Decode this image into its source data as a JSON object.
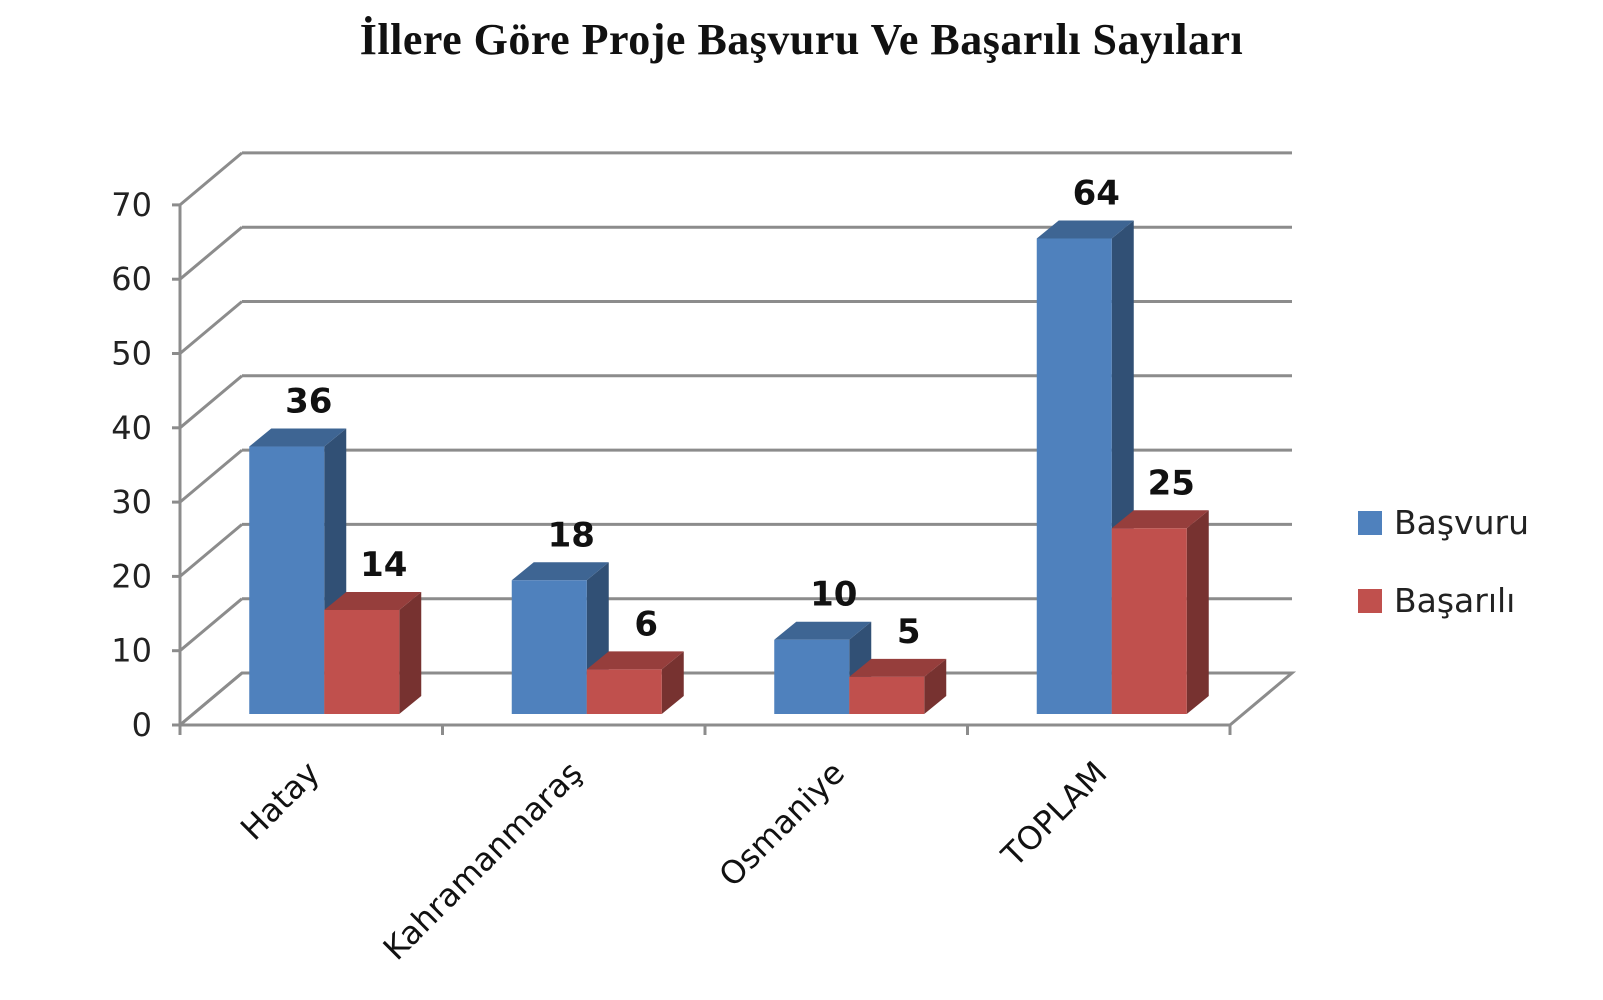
{
  "chart_data": {
    "type": "bar",
    "title": "İllere Göre Proje Başvuru Ve Başarılı Sayıları",
    "categories": [
      "Hatay",
      "Kahramanmaraş",
      "Osmaniye",
      "TOPLAM"
    ],
    "series": [
      {
        "name": "Başvuru",
        "values": [
          36,
          18,
          10,
          64
        ],
        "color": "#4F81BD"
      },
      {
        "name": "Başarılı",
        "values": [
          14,
          6,
          5,
          25
        ],
        "color": "#C0504D"
      }
    ],
    "ylim": [
      0,
      70
    ],
    "yticks": [
      0,
      10,
      20,
      30,
      40,
      50,
      60,
      70
    ],
    "grid": true,
    "legend_position": "right",
    "style": "3d-clustered-column"
  }
}
